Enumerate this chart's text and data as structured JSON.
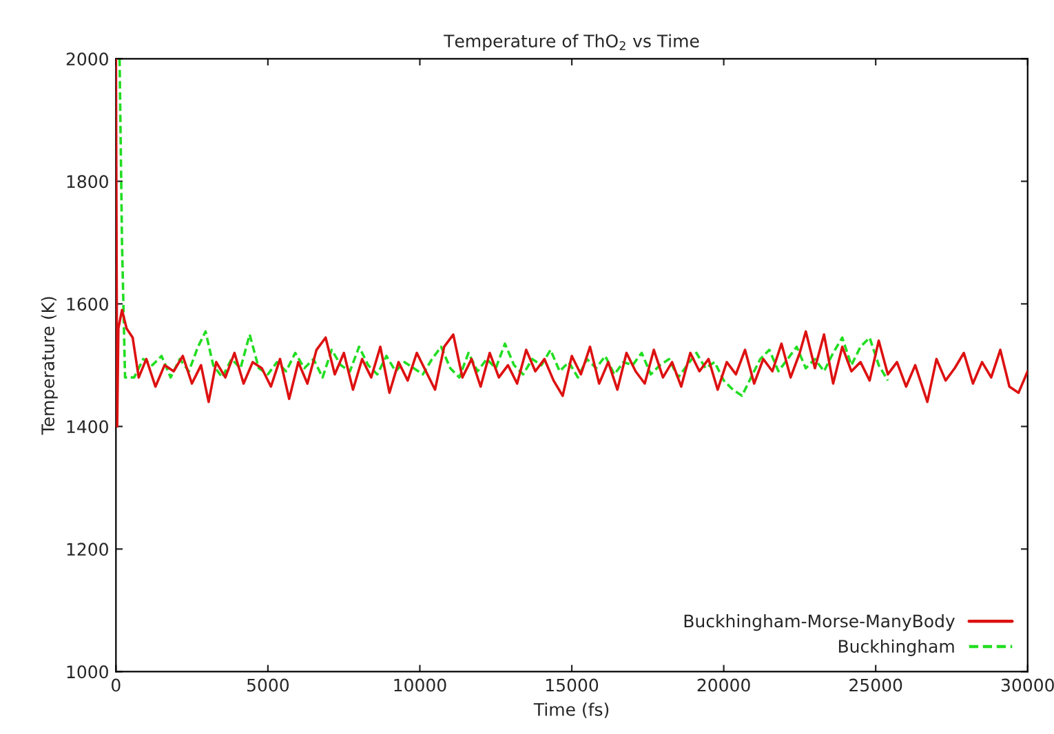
{
  "chart_data": {
    "type": "line",
    "title": "Temperature of ThO$_{2}$ vs Time",
    "xlabel": "Time (fs)",
    "ylabel": "Temperature (K)",
    "xlim": [
      0,
      30000
    ],
    "xticks": [
      0,
      5000,
      10000,
      15000,
      20000,
      25000,
      30000
    ],
    "ylim": [
      1000,
      2000
    ],
    "yticks": [
      1000,
      1200,
      1400,
      1600,
      1800,
      2000
    ],
    "grid": false,
    "legend": "bottom right",
    "series": [
      {
        "name": "Buckhingham-Morse-ManyBody",
        "color": "#dd1111",
        "line_style": "solid",
        "x": [
          0,
          40,
          80,
          200,
          350,
          550,
          750,
          1000,
          1300,
          1600,
          1900,
          2200,
          2500,
          2800,
          3050,
          3300,
          3600,
          3900,
          4200,
          4500,
          4800,
          5100,
          5400,
          5700,
          6000,
          6300,
          6600,
          6900,
          7200,
          7500,
          7800,
          8100,
          8400,
          8700,
          9000,
          9300,
          9600,
          9900,
          10200,
          10500,
          10800,
          11100,
          11400,
          11700,
          12000,
          12300,
          12600,
          12900,
          13200,
          13500,
          13800,
          14100,
          14400,
          14700,
          15000,
          15300,
          15600,
          15900,
          16200,
          16500,
          16800,
          17100,
          17400,
          17700,
          18000,
          18300,
          18600,
          18900,
          19200,
          19500,
          19800,
          20100,
          20400,
          20700,
          21000,
          21300,
          21600,
          21900,
          22200,
          22500,
          22700,
          23000,
          23300,
          23600,
          23900,
          24200,
          24500,
          24800,
          25100,
          25400,
          25700,
          26000,
          26300,
          26700,
          27000,
          27300,
          27600,
          27900,
          28200,
          28500,
          28800,
          29100,
          29400,
          29700,
          30000
        ],
        "values": [
          2000,
          1400,
          1560,
          1590,
          1560,
          1545,
          1480,
          1510,
          1465,
          1500,
          1490,
          1515,
          1470,
          1500,
          1440,
          1505,
          1480,
          1520,
          1470,
          1505,
          1495,
          1465,
          1510,
          1445,
          1505,
          1470,
          1525,
          1545,
          1485,
          1520,
          1460,
          1510,
          1480,
          1530,
          1455,
          1505,
          1475,
          1520,
          1490,
          1460,
          1530,
          1550,
          1480,
          1510,
          1465,
          1520,
          1480,
          1500,
          1470,
          1525,
          1490,
          1510,
          1475,
          1450,
          1515,
          1485,
          1530,
          1470,
          1505,
          1460,
          1520,
          1490,
          1470,
          1525,
          1480,
          1505,
          1465,
          1520,
          1490,
          1510,
          1460,
          1505,
          1485,
          1525,
          1470,
          1510,
          1490,
          1535,
          1480,
          1520,
          1555,
          1495,
          1550,
          1470,
          1530,
          1490,
          1505,
          1475,
          1540,
          1485,
          1505,
          1465,
          1500,
          1440,
          1510,
          1475,
          1495,
          1520,
          1470,
          1505,
          1480,
          1525,
          1465,
          1455,
          1490
        ]
      },
      {
        "name": "Buckhingham",
        "color": "#22dd22",
        "line_style": "dashed",
        "x": [
          120,
          200,
          300,
          600,
          900,
          1200,
          1500,
          1800,
          2100,
          2400,
          2700,
          2950,
          3200,
          3500,
          3800,
          4100,
          4400,
          4700,
          5000,
          5300,
          5600,
          5900,
          6200,
          6500,
          6800,
          7100,
          7400,
          7700,
          8000,
          8300,
          8600,
          8900,
          9200,
          9500,
          9800,
          10100,
          10400,
          10700,
          11000,
          11300,
          11600,
          11900,
          12200,
          12500,
          12800,
          13100,
          13400,
          13700,
          14000,
          14300,
          14600,
          14900,
          15200,
          15500,
          15800,
          16100,
          16400,
          16700,
          17000,
          17300,
          17600,
          17900,
          18200,
          18500,
          18800,
          19100,
          19400,
          19700,
          20000,
          20300,
          20600,
          20900,
          21200,
          21500,
          21800,
          22100,
          22400,
          22700,
          23000,
          23300,
          23600,
          23900,
          24200,
          24500,
          24800,
          25100,
          25400
        ],
        "values": [
          2000,
          1700,
          1480,
          1480,
          1510,
          1500,
          1515,
          1480,
          1510,
          1490,
          1530,
          1555,
          1500,
          1480,
          1510,
          1495,
          1550,
          1495,
          1485,
          1505,
          1490,
          1520,
          1495,
          1510,
          1480,
          1525,
          1500,
          1490,
          1530,
          1500,
          1485,
          1515,
          1490,
          1505,
          1495,
          1485,
          1510,
          1530,
          1495,
          1480,
          1520,
          1490,
          1510,
          1495,
          1535,
          1500,
          1485,
          1510,
          1500,
          1525,
          1490,
          1505,
          1480,
          1510,
          1495,
          1515,
          1485,
          1505,
          1500,
          1520,
          1485,
          1500,
          1510,
          1480,
          1500,
          1520,
          1495,
          1505,
          1475,
          1460,
          1450,
          1480,
          1510,
          1525,
          1490,
          1510,
          1530,
          1495,
          1510,
          1490,
          1520,
          1545,
          1500,
          1530,
          1545,
          1500,
          1475
        ]
      }
    ]
  }
}
